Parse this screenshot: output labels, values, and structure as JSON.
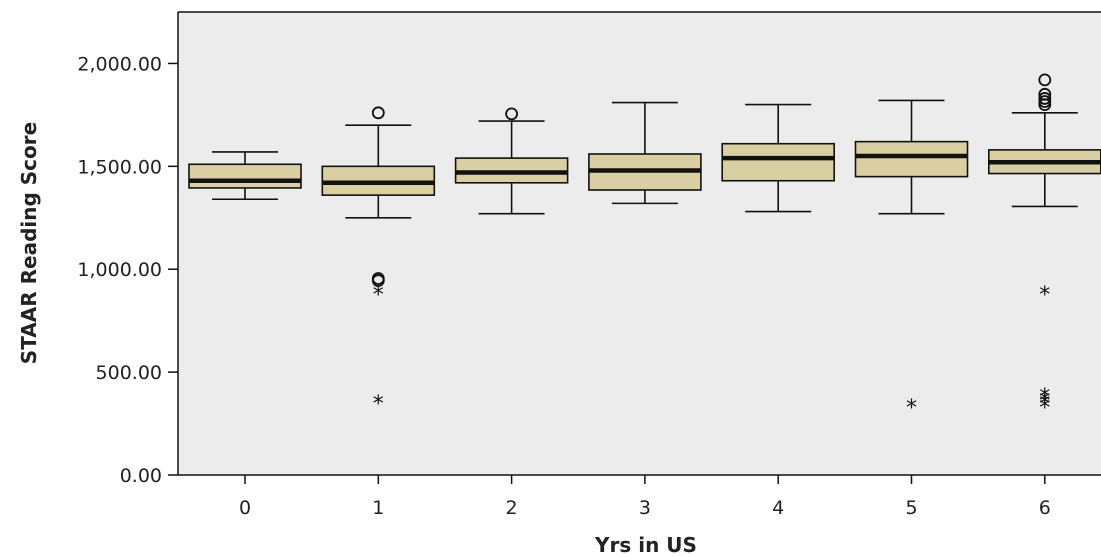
{
  "chart_data": {
    "type": "boxplot",
    "title": "",
    "xlabel": "Yrs in US",
    "ylabel": "STAAR Reading Score",
    "ylim": [
      0,
      2250
    ],
    "yticks": [
      "0.00",
      "500.00",
      "1,000.00",
      "1,500.00",
      "2,000.00"
    ],
    "grid": false,
    "colors": {
      "box_fill": "#d9cfa3",
      "plot_bg": "#ececec",
      "stroke": "#111111"
    },
    "categories": [
      "0",
      "1",
      "2",
      "3",
      "4",
      "5",
      "6"
    ],
    "boxes": [
      {
        "category": "0",
        "whisker_low": 1340,
        "q1": 1395,
        "median": 1430,
        "q3": 1510,
        "whisker_high": 1570,
        "circle_outliers": [],
        "star_outliers": []
      },
      {
        "category": "1",
        "whisker_low": 1250,
        "q1": 1360,
        "median": 1420,
        "q3": 1500,
        "whisker_high": 1700,
        "circle_outliers": [
          1760,
          955,
          945
        ],
        "star_outliers": [
          880,
          350
        ]
      },
      {
        "category": "2",
        "whisker_low": 1270,
        "q1": 1420,
        "median": 1470,
        "q3": 1540,
        "whisker_high": 1720,
        "circle_outliers": [
          1755
        ],
        "star_outliers": []
      },
      {
        "category": "3",
        "whisker_low": 1320,
        "q1": 1385,
        "median": 1480,
        "q3": 1560,
        "whisker_high": 1810,
        "circle_outliers": [],
        "star_outliers": []
      },
      {
        "category": "4",
        "whisker_low": 1280,
        "q1": 1430,
        "median": 1540,
        "q3": 1610,
        "whisker_high": 1800,
        "circle_outliers": [],
        "star_outliers": []
      },
      {
        "category": "5",
        "whisker_low": 1270,
        "q1": 1450,
        "median": 1550,
        "q3": 1620,
        "whisker_high": 1820,
        "circle_outliers": [],
        "star_outliers": [
          330
        ]
      },
      {
        "category": "6",
        "whisker_low": 1305,
        "q1": 1465,
        "median": 1520,
        "q3": 1580,
        "whisker_high": 1760,
        "circle_outliers": [
          1920,
          1850,
          1830,
          1815,
          1800
        ],
        "star_outliers": [
          880,
          385,
          365,
          350,
          330
        ]
      }
    ]
  }
}
